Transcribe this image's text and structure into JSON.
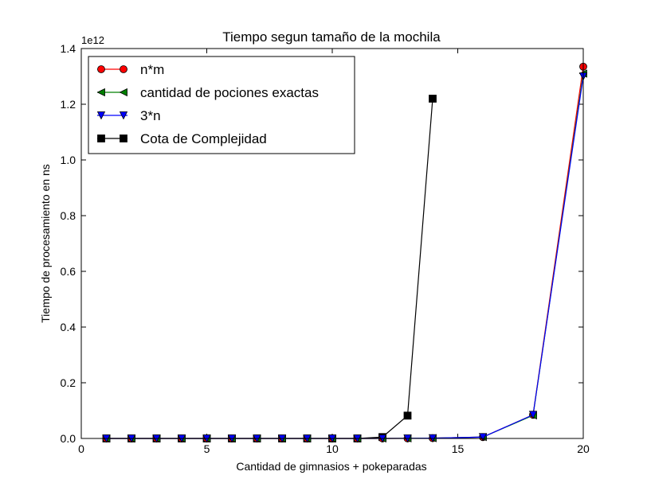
{
  "chart_data": {
    "type": "line",
    "title": "Tiempo segun tamaño de la mochila",
    "xlabel": "Cantidad de gimnasios + pokeparadas",
    "ylabel": "Tiempo de procesamiento en ns",
    "y_scale_label": "1e12",
    "xlim": [
      0,
      20
    ],
    "ylim": [
      0,
      1.4
    ],
    "x_ticks": [
      0,
      5,
      10,
      15,
      20
    ],
    "x_tick_labels": [
      "0",
      "5",
      "10",
      "15",
      "20"
    ],
    "y_ticks": [
      0,
      0.2,
      0.4,
      0.6,
      0.8,
      1.0,
      1.2,
      1.4
    ],
    "y_tick_labels": [
      "0.0",
      "0.2",
      "0.4",
      "0.6",
      "0.8",
      "1.0",
      "1.2",
      "1.4"
    ],
    "grid": false,
    "legend_position": "top-left",
    "series": [
      {
        "name": "n*m",
        "color": "#ff0000",
        "marker": "circle",
        "x": [
          1,
          2,
          3,
          4,
          5,
          6,
          7,
          8,
          9,
          10,
          11,
          12,
          13,
          14,
          16,
          18,
          20
        ],
        "y": [
          0,
          0,
          0,
          0,
          0,
          0,
          0,
          0,
          0,
          0,
          0,
          0.0001,
          0.0003,
          0.001,
          0.005,
          0.085,
          1.335
        ]
      },
      {
        "name": "cantidad de pociones exactas",
        "color": "#008000",
        "marker": "triangle-left",
        "x": [
          1,
          2,
          3,
          4,
          5,
          6,
          7,
          8,
          9,
          10,
          11,
          12,
          13,
          14,
          16,
          18,
          20
        ],
        "y": [
          0,
          0,
          0,
          0,
          0,
          0,
          0,
          0,
          0,
          0,
          0,
          0.0001,
          0.0003,
          0.001,
          0.005,
          0.083,
          1.31
        ]
      },
      {
        "name": "3*n",
        "color": "#0000ff",
        "marker": "triangle-down",
        "x": [
          1,
          2,
          3,
          4,
          5,
          6,
          7,
          8,
          9,
          10,
          11,
          12,
          13,
          14,
          16,
          18,
          20
        ],
        "y": [
          0,
          0,
          0,
          0,
          0,
          0,
          0,
          0,
          0,
          0,
          0,
          0.0001,
          0.0003,
          0.001,
          0.005,
          0.085,
          1.3
        ]
      },
      {
        "name": "Cota de Complejidad",
        "color": "#000000",
        "marker": "square",
        "x": [
          1,
          2,
          3,
          4,
          5,
          6,
          7,
          8,
          9,
          10,
          11,
          12,
          13,
          14
        ],
        "y": [
          0,
          0,
          0,
          0,
          0,
          0,
          0,
          0,
          0,
          0,
          0,
          0.005,
          0.082,
          1.22
        ]
      }
    ]
  }
}
